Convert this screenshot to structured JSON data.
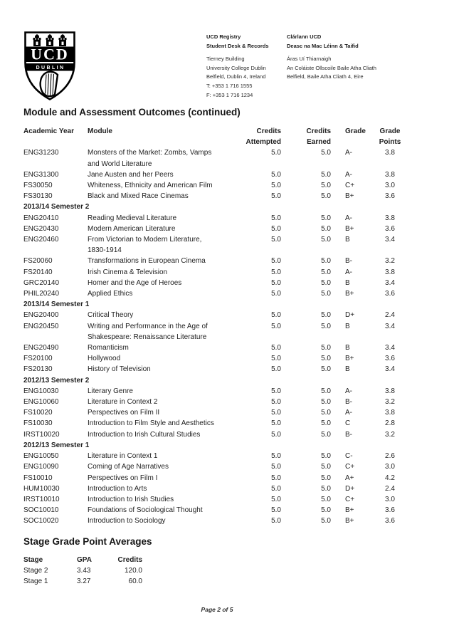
{
  "colors": {
    "ink": "#1f1f1f",
    "crest": "#000000"
  },
  "logo": {
    "ucd": "UCD",
    "dublin": "DUBLIN"
  },
  "header": {
    "left": {
      "lines_bold": [
        "UCD Registry",
        "Student Desk & Records"
      ],
      "lines": [
        "Tierney Building",
        "University College Dublin",
        "Belfield, Dublin 4, Ireland",
        "T: +353 1 716 1555",
        "F: +353 1 716 1234"
      ]
    },
    "right": {
      "lines_bold": [
        "Clárlann UCD",
        "Deasc na Mac Léinn & Taifid"
      ],
      "lines": [
        "Áras Uí Thiarnaigh",
        "An Coláiste Ollscoile Baile Atha Cliath",
        "Belfield, Baile Atha Cliath 4, Eire"
      ]
    }
  },
  "main": {
    "title": "Module and Assessment Outcomes (continued)",
    "table": {
      "headers": {
        "academic_year": "Academic Year",
        "module": "Module",
        "credits_attempted": "Credits\nAttempted",
        "credits_earned": "Credits\nEarned",
        "grade": "Grade",
        "grade_points": "Grade\nPoints"
      },
      "groups": [
        {
          "section": "",
          "rows": [
            [
              "ENG31230",
              "Monsters of the Market: Zombs, Vamps\nand World Literature",
              "5.0",
              "5.0",
              "A-",
              "3.8"
            ],
            [
              "ENG31300",
              "Jane Austen and her Peers",
              "5.0",
              "5.0",
              "A-",
              "3.8"
            ],
            [
              "FS30050",
              "Whiteness, Ethnicity and American Film",
              "5.0",
              "5.0",
              "C+",
              "3.0"
            ],
            [
              "FS30130",
              "Black and Mixed Race Cinemas",
              "5.0",
              "5.0",
              "B+",
              "3.6"
            ]
          ]
        },
        {
          "section": "2013/14 Semester 2",
          "rows": [
            [
              "ENG20410",
              "Reading Medieval Literature",
              "5.0",
              "5.0",
              "A-",
              "3.8"
            ],
            [
              "ENG20430",
              "Modern American Literature",
              "5.0",
              "5.0",
              "B+",
              "3.6"
            ],
            [
              "ENG20460",
              "From Victorian to Modern Literature,\n1830-1914",
              "5.0",
              "5.0",
              "B",
              "3.4"
            ],
            [
              "FS20060",
              "Transformations in European Cinema",
              "5.0",
              "5.0",
              "B-",
              "3.2"
            ],
            [
              "FS20140",
              "Irish Cinema & Television",
              "5.0",
              "5.0",
              "A-",
              "3.8"
            ],
            [
              "GRC20140",
              "Homer and the Age of Heroes",
              "5.0",
              "5.0",
              "B",
              "3.4"
            ],
            [
              "PHIL20240",
              "Applied Ethics",
              "5.0",
              "5.0",
              "B+",
              "3.6"
            ]
          ]
        },
        {
          "section": "2013/14 Semester 1",
          "rows": [
            [
              "ENG20400",
              "Critical Theory",
              "5.0",
              "5.0",
              "D+",
              "2.4"
            ],
            [
              "ENG20450",
              "Writing and Performance in the Age of\nShakespeare: Renaissance Literature",
              "5.0",
              "5.0",
              "B",
              "3.4"
            ],
            [
              "ENG20490",
              "Romanticism",
              "5.0",
              "5.0",
              "B",
              "3.4"
            ],
            [
              "FS20100",
              "Hollywood",
              "5.0",
              "5.0",
              "B+",
              "3.6"
            ],
            [
              "FS20130",
              "History of Television",
              "5.0",
              "5.0",
              "B",
              "3.4"
            ]
          ]
        },
        {
          "section": "2012/13 Semester 2",
          "rows": [
            [
              "ENG10030",
              "Literary Genre",
              "5.0",
              "5.0",
              "A-",
              "3.8"
            ],
            [
              "ENG10060",
              "Literature in Context 2",
              "5.0",
              "5.0",
              "B-",
              "3.2"
            ],
            [
              "FS10020",
              "Perspectives on Film II",
              "5.0",
              "5.0",
              "A-",
              "3.8"
            ],
            [
              "FS10030",
              "Introduction to Film Style and Aesthetics",
              "5.0",
              "5.0",
              "C",
              "2.8"
            ],
            [
              "IRST10020",
              "Introduction to Irish Cultural Studies",
              "5.0",
              "5.0",
              "B-",
              "3.2"
            ]
          ]
        },
        {
          "section": "2012/13 Semester 1",
          "rows": [
            [
              "ENG10050",
              "Literature in Context 1",
              "5.0",
              "5.0",
              "C-",
              "2.6"
            ],
            [
              "ENG10090",
              "Coming of Age Narratives",
              "5.0",
              "5.0",
              "C+",
              "3.0"
            ],
            [
              "FS10010",
              "Perspectives on Film I",
              "5.0",
              "5.0",
              "A+",
              "4.2"
            ],
            [
              "HUM10030",
              "Introduction to Arts",
              "5.0",
              "5.0",
              "D+",
              "2.4"
            ],
            [
              "IRST10010",
              "Introduction to Irish Studies",
              "5.0",
              "5.0",
              "C+",
              "3.0"
            ],
            [
              "SOC10010",
              "Foundations of Sociological Thought",
              "5.0",
              "5.0",
              "B+",
              "3.6"
            ],
            [
              "SOC10020",
              "Introduction to Sociology",
              "5.0",
              "5.0",
              "B+",
              "3.6"
            ]
          ]
        }
      ]
    }
  },
  "stage_averages": {
    "title": "Stage Grade Point Averages",
    "headers": [
      "Stage",
      "GPA",
      "Credits"
    ],
    "rows": [
      [
        "Stage 2",
        "3.43",
        "120.0"
      ],
      [
        "Stage 1",
        "3.27",
        "60.0"
      ]
    ]
  },
  "footer": {
    "page": "Page 2 of 5"
  }
}
